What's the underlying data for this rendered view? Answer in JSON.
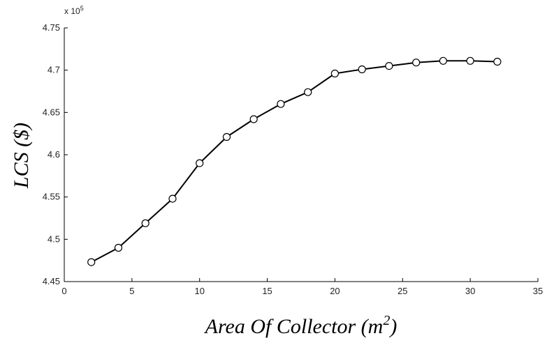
{
  "chart_data": {
    "type": "line",
    "xlabel": "Area Of Collector (m",
    "xlabel_sup": "2",
    "xlabel_close": ")",
    "ylabel": "LCS ($)",
    "y_multiplier_label": "x 10",
    "y_multiplier_exp": "5",
    "xlim": [
      0,
      35
    ],
    "ylim": [
      4.45,
      4.75
    ],
    "x_ticks": [
      "0",
      "5",
      "10",
      "15",
      "20",
      "25",
      "30",
      "35"
    ],
    "y_ticks": [
      "4.45",
      "4.5",
      "4.55",
      "4.6",
      "4.65",
      "4.7",
      "4.75"
    ],
    "grid": false,
    "marker": "circle",
    "line_color": "#000000",
    "series": [
      {
        "x": [
          2,
          4,
          6,
          8,
          10,
          12,
          14,
          16,
          18,
          20,
          22,
          24,
          26,
          28,
          30,
          32
        ],
        "values": [
          4.473,
          4.49,
          4.519,
          4.548,
          4.59,
          4.621,
          4.642,
          4.66,
          4.674,
          4.696,
          4.701,
          4.705,
          4.709,
          4.711,
          4.711,
          4.71
        ]
      }
    ]
  }
}
